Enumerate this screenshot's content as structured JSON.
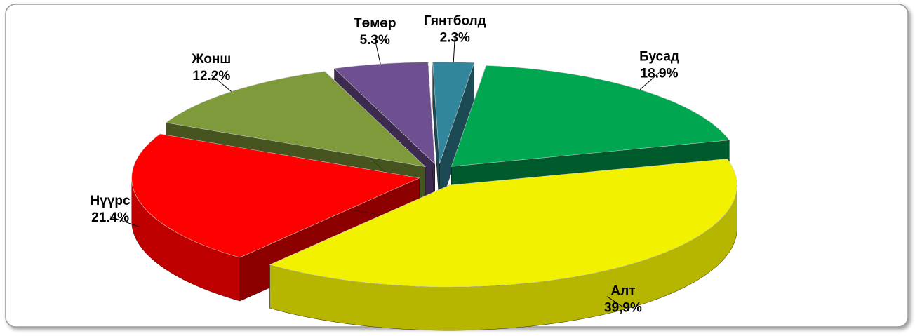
{
  "chart_data": {
    "type": "pie3d",
    "categories": [
      "Бусад",
      "Алт",
      "Нүүрс",
      "Жонш",
      "Төмөр",
      "Гянтболд"
    ],
    "values": [
      18.9,
      39.9,
      21.4,
      12.2,
      5.3,
      2.3
    ],
    "value_labels": [
      "18.9%",
      "39,9%",
      "21.4%",
      "12.2%",
      "5.3%",
      "2.3%"
    ],
    "colors": [
      "#00a650",
      "#f2f200",
      "#ff0000",
      "#7f9a3a",
      "#6e4f8f",
      "#31869b"
    ]
  }
}
